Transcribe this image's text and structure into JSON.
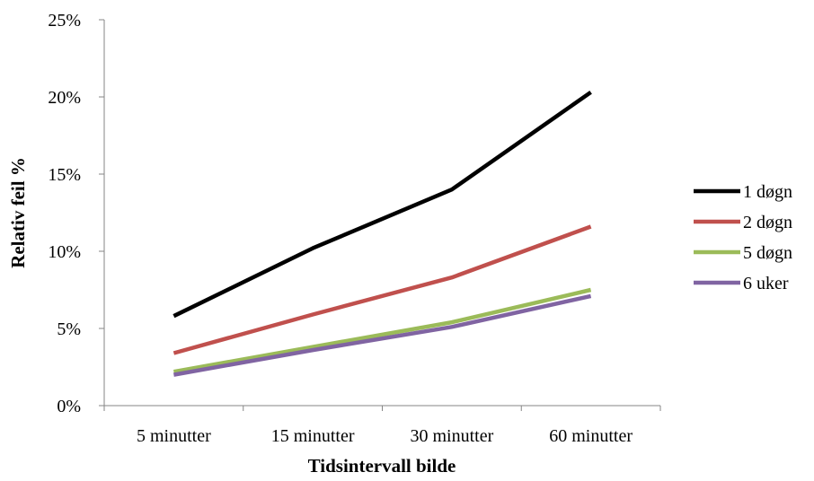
{
  "chart_data": {
    "type": "line",
    "title": "",
    "xlabel": "Tidsintervall bilde",
    "ylabel": "Relativ feil %",
    "categories": [
      "5 minutter",
      "15 minutter",
      "30 minutter",
      "60 minutter"
    ],
    "y_ticks": [
      "0%",
      "5%",
      "10%",
      "15%",
      "20%",
      "25%"
    ],
    "ylim": [
      0,
      25
    ],
    "grid": false,
    "legend_position": "right",
    "series": [
      {
        "name": "1 døgn",
        "color": "#000000",
        "values": [
          5.8,
          10.2,
          14.0,
          20.3
        ]
      },
      {
        "name": "2 døgn",
        "color": "#c0504d",
        "values": [
          3.4,
          5.9,
          8.3,
          11.6
        ]
      },
      {
        "name": "5 døgn",
        "color": "#9bbb59",
        "values": [
          2.2,
          3.8,
          5.4,
          7.5
        ]
      },
      {
        "name": "6 uker",
        "color": "#8064a2",
        "values": [
          2.0,
          3.6,
          5.1,
          7.1
        ]
      }
    ]
  }
}
